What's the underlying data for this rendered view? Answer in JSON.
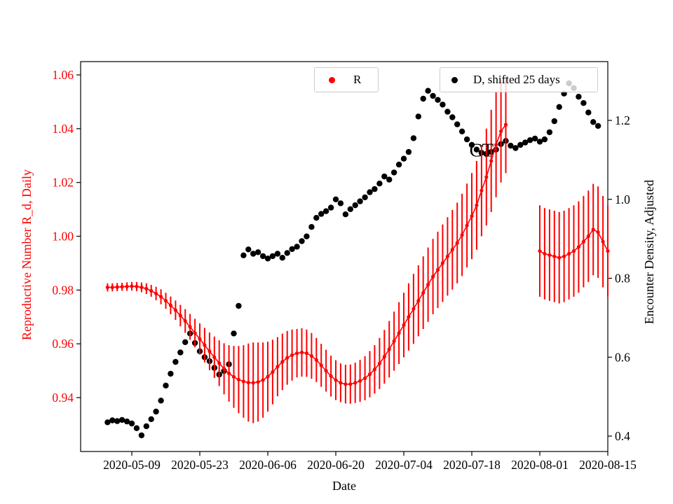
{
  "figure": {
    "legends": [
      {
        "label": "R",
        "marker_color": "#ff0000"
      },
      {
        "label": "D, shifted 25 days",
        "marker_color": "#000000"
      }
    ]
  },
  "chart_data": {
    "type": "scatter",
    "title": "",
    "xlabel": "Date",
    "grid": false,
    "annotation": {
      "text": "CT",
      "date": "2020-07-20",
      "value": 1.032
    },
    "x_axis": {
      "ticks": [
        "2020-05-09",
        "2020-05-23",
        "2020-06-06",
        "2020-06-20",
        "2020-07-04",
        "2020-07-18",
        "2020-08-01",
        "2020-08-15"
      ]
    },
    "left_axis": {
      "label": "Reproductive Number R_d, Daily",
      "color": "#ff0000",
      "ticks": [
        0.94,
        0.96,
        0.98,
        1.0,
        1.02,
        1.04,
        1.06
      ],
      "range": [
        0.928,
        1.063
      ]
    },
    "right_axis": {
      "label": "Encounter Density, Adjusted",
      "color": "#000000",
      "ticks": [
        0.4,
        0.6,
        0.8,
        1.0,
        1.2
      ],
      "range": [
        0.36,
        1.35
      ]
    },
    "series": [
      {
        "name": "R",
        "axis": "left",
        "color": "#ff0000",
        "marker": "dot",
        "errorbars": true,
        "points": [
          [
            "2020-05-04",
            0.981,
            0.0015
          ],
          [
            "2020-05-05",
            0.981,
            0.0015
          ],
          [
            "2020-05-06",
            0.9811,
            0.0015
          ],
          [
            "2020-05-07",
            0.9812,
            0.0015
          ],
          [
            "2020-05-08",
            0.9813,
            0.0016
          ],
          [
            "2020-05-09",
            0.9814,
            0.0016
          ],
          [
            "2020-05-10",
            0.9813,
            0.0017
          ],
          [
            "2020-05-11",
            0.981,
            0.0018
          ],
          [
            "2020-05-12",
            0.9805,
            0.002
          ],
          [
            "2020-05-13",
            0.9797,
            0.0022
          ],
          [
            "2020-05-14",
            0.9787,
            0.0025
          ],
          [
            "2020-05-15",
            0.9775,
            0.0028
          ],
          [
            "2020-05-16",
            0.976,
            0.003
          ],
          [
            "2020-05-17",
            0.9743,
            0.0033
          ],
          [
            "2020-05-18",
            0.9725,
            0.0036
          ],
          [
            "2020-05-19",
            0.9705,
            0.004
          ],
          [
            "2020-05-20",
            0.9685,
            0.0044
          ],
          [
            "2020-05-21",
            0.9663,
            0.0048
          ],
          [
            "2020-05-22",
            0.964,
            0.0053
          ],
          [
            "2020-05-23",
            0.9618,
            0.0058
          ],
          [
            "2020-05-24",
            0.9595,
            0.0064
          ],
          [
            "2020-05-25",
            0.9572,
            0.007
          ],
          [
            "2020-05-26",
            0.955,
            0.0077
          ],
          [
            "2020-05-27",
            0.9528,
            0.0085
          ],
          [
            "2020-05-28",
            0.9507,
            0.0095
          ],
          [
            "2020-05-29",
            0.949,
            0.0105
          ],
          [
            "2020-05-30",
            0.9477,
            0.0115
          ],
          [
            "2020-05-31",
            0.9467,
            0.0125
          ],
          [
            "2020-06-01",
            0.946,
            0.0135
          ],
          [
            "2020-06-02",
            0.9456,
            0.0145
          ],
          [
            "2020-06-03",
            0.9455,
            0.015
          ],
          [
            "2020-06-04",
            0.9458,
            0.0147
          ],
          [
            "2020-06-05",
            0.9465,
            0.014
          ],
          [
            "2020-06-06",
            0.9478,
            0.013
          ],
          [
            "2020-06-07",
            0.9495,
            0.012
          ],
          [
            "2020-06-08",
            0.9515,
            0.011
          ],
          [
            "2020-06-09",
            0.9533,
            0.0105
          ],
          [
            "2020-06-10",
            0.9548,
            0.01
          ],
          [
            "2020-06-11",
            0.9558,
            0.0095
          ],
          [
            "2020-06-12",
            0.9565,
            0.009
          ],
          [
            "2020-06-13",
            0.9568,
            0.009
          ],
          [
            "2020-06-14",
            0.9565,
            0.0088
          ],
          [
            "2020-06-15",
            0.9555,
            0.0085
          ],
          [
            "2020-06-16",
            0.954,
            0.0082
          ],
          [
            "2020-06-17",
            0.952,
            0.008
          ],
          [
            "2020-06-18",
            0.95,
            0.0078
          ],
          [
            "2020-06-19",
            0.948,
            0.0076
          ],
          [
            "2020-06-20",
            0.9465,
            0.0074
          ],
          [
            "2020-06-21",
            0.9455,
            0.0072
          ],
          [
            "2020-06-22",
            0.945,
            0.0072
          ],
          [
            "2020-06-23",
            0.945,
            0.0073
          ],
          [
            "2020-06-24",
            0.9455,
            0.0075
          ],
          [
            "2020-06-25",
            0.9462,
            0.0078
          ],
          [
            "2020-06-26",
            0.9472,
            0.0082
          ],
          [
            "2020-06-27",
            0.9487,
            0.0086
          ],
          [
            "2020-06-28",
            0.9505,
            0.009
          ],
          [
            "2020-06-29",
            0.9527,
            0.0095
          ],
          [
            "2020-06-30",
            0.9552,
            0.01
          ],
          [
            "2020-07-01",
            0.958,
            0.0105
          ],
          [
            "2020-07-02",
            0.961,
            0.011
          ],
          [
            "2020-07-03",
            0.964,
            0.0115
          ],
          [
            "2020-07-04",
            0.967,
            0.012
          ],
          [
            "2020-07-05",
            0.97,
            0.0125
          ],
          [
            "2020-07-06",
            0.973,
            0.013
          ],
          [
            "2020-07-07",
            0.976,
            0.0132
          ],
          [
            "2020-07-08",
            0.979,
            0.0135
          ],
          [
            "2020-07-09",
            0.982,
            0.0138
          ],
          [
            "2020-07-10",
            0.985,
            0.014
          ],
          [
            "2020-07-11",
            0.9875,
            0.0142
          ],
          [
            "2020-07-12",
            0.99,
            0.0144
          ],
          [
            "2020-07-13",
            0.9925,
            0.0146
          ],
          [
            "2020-07-14",
            0.995,
            0.0148
          ],
          [
            "2020-07-15",
            0.9975,
            0.015
          ],
          [
            "2020-07-16",
            1.0005,
            0.0153
          ],
          [
            "2020-07-17",
            1.004,
            0.0156
          ],
          [
            "2020-07-18",
            1.0075,
            0.016
          ],
          [
            "2020-07-19",
            1.0115,
            0.0165
          ],
          [
            "2020-07-20",
            1.017,
            0.017
          ],
          [
            "2020-07-21",
            1.022,
            0.018
          ],
          [
            "2020-07-22",
            1.028,
            0.019
          ],
          [
            "2020-07-23",
            1.034,
            0.0195
          ],
          [
            "2020-07-24",
            1.039,
            0.019
          ],
          [
            "2020-07-25",
            1.0415,
            0.018
          ],
          [
            "2020-08-01",
            0.9945,
            0.017
          ],
          [
            "2020-08-02",
            0.9935,
            0.017
          ],
          [
            "2020-08-03",
            0.993,
            0.017
          ],
          [
            "2020-08-04",
            0.9925,
            0.017
          ],
          [
            "2020-08-05",
            0.992,
            0.017
          ],
          [
            "2020-08-06",
            0.9925,
            0.017
          ],
          [
            "2020-08-07",
            0.9935,
            0.017
          ],
          [
            "2020-08-08",
            0.9945,
            0.017
          ],
          [
            "2020-08-09",
            0.996,
            0.017
          ],
          [
            "2020-08-10",
            0.998,
            0.017
          ],
          [
            "2020-08-11",
            1.0,
            0.017
          ],
          [
            "2020-08-12",
            1.0025,
            0.017
          ],
          [
            "2020-08-13",
            1.0015,
            0.017
          ],
          [
            "2020-08-14",
            0.998,
            0.017
          ],
          [
            "2020-08-15",
            0.9945,
            0.017
          ]
        ]
      },
      {
        "name": "D, shifted 25 days",
        "axis": "right",
        "color": "#000000",
        "marker": "dot",
        "errorbars": false,
        "points": [
          [
            "2020-05-04",
            0.435
          ],
          [
            "2020-05-05",
            0.44
          ],
          [
            "2020-05-06",
            0.438
          ],
          [
            "2020-05-07",
            0.441
          ],
          [
            "2020-05-08",
            0.437
          ],
          [
            "2020-05-09",
            0.432
          ],
          [
            "2020-05-10",
            0.42
          ],
          [
            "2020-05-11",
            0.402
          ],
          [
            "2020-05-12",
            0.425
          ],
          [
            "2020-05-13",
            0.443
          ],
          [
            "2020-05-14",
            0.462
          ],
          [
            "2020-05-15",
            0.49
          ],
          [
            "2020-05-16",
            0.528
          ],
          [
            "2020-05-17",
            0.558
          ],
          [
            "2020-05-18",
            0.588
          ],
          [
            "2020-05-19",
            0.612
          ],
          [
            "2020-05-20",
            0.638
          ],
          [
            "2020-05-21",
            0.66
          ],
          [
            "2020-05-22",
            0.636
          ],
          [
            "2020-05-23",
            0.615
          ],
          [
            "2020-05-24",
            0.6
          ],
          [
            "2020-05-25",
            0.59
          ],
          [
            "2020-05-26",
            0.573
          ],
          [
            "2020-05-27",
            0.556
          ],
          [
            "2020-05-28",
            0.565
          ],
          [
            "2020-05-29",
            0.582
          ],
          [
            "2020-05-30",
            0.66
          ],
          [
            "2020-05-31",
            0.73
          ],
          [
            "2020-06-01",
            0.858
          ],
          [
            "2020-06-02",
            0.873
          ],
          [
            "2020-06-03",
            0.862
          ],
          [
            "2020-06-04",
            0.866
          ],
          [
            "2020-06-05",
            0.856
          ],
          [
            "2020-06-06",
            0.85
          ],
          [
            "2020-06-07",
            0.856
          ],
          [
            "2020-06-08",
            0.862
          ],
          [
            "2020-06-09",
            0.852
          ],
          [
            "2020-06-10",
            0.864
          ],
          [
            "2020-06-11",
            0.874
          ],
          [
            "2020-06-12",
            0.88
          ],
          [
            "2020-06-13",
            0.894
          ],
          [
            "2020-06-14",
            0.906
          ],
          [
            "2020-06-15",
            0.93
          ],
          [
            "2020-06-16",
            0.953
          ],
          [
            "2020-06-17",
            0.963
          ],
          [
            "2020-06-18",
            0.97
          ],
          [
            "2020-06-19",
            0.979
          ],
          [
            "2020-06-20",
            1.0
          ],
          [
            "2020-06-21",
            0.99
          ],
          [
            "2020-06-22",
            0.962
          ],
          [
            "2020-06-23",
            0.975
          ],
          [
            "2020-06-24",
            0.985
          ],
          [
            "2020-06-25",
            0.995
          ],
          [
            "2020-06-26",
            1.005
          ],
          [
            "2020-06-27",
            1.018
          ],
          [
            "2020-06-28",
            1.026
          ],
          [
            "2020-06-29",
            1.04
          ],
          [
            "2020-06-30",
            1.058
          ],
          [
            "2020-07-01",
            1.05
          ],
          [
            "2020-07-02",
            1.068
          ],
          [
            "2020-07-03",
            1.088
          ],
          [
            "2020-07-04",
            1.103
          ],
          [
            "2020-07-05",
            1.12
          ],
          [
            "2020-07-06",
            1.155
          ],
          [
            "2020-07-07",
            1.21
          ],
          [
            "2020-07-08",
            1.255
          ],
          [
            "2020-07-09",
            1.275
          ],
          [
            "2020-07-10",
            1.262
          ],
          [
            "2020-07-11",
            1.252
          ],
          [
            "2020-07-12",
            1.24
          ],
          [
            "2020-07-13",
            1.222
          ],
          [
            "2020-07-14",
            1.208
          ],
          [
            "2020-07-15",
            1.19
          ],
          [
            "2020-07-16",
            1.172
          ],
          [
            "2020-07-17",
            1.152
          ],
          [
            "2020-07-18",
            1.138
          ],
          [
            "2020-07-19",
            1.126
          ],
          [
            "2020-07-20",
            1.118
          ],
          [
            "2020-07-21",
            1.115
          ],
          [
            "2020-07-22",
            1.12
          ],
          [
            "2020-07-23",
            1.126
          ],
          [
            "2020-07-24",
            1.14
          ],
          [
            "2020-07-25",
            1.148
          ],
          [
            "2020-07-26",
            1.136
          ],
          [
            "2020-07-27",
            1.13
          ],
          [
            "2020-07-28",
            1.138
          ],
          [
            "2020-07-29",
            1.144
          ],
          [
            "2020-07-30",
            1.15
          ],
          [
            "2020-07-31",
            1.154
          ],
          [
            "2020-08-01",
            1.146
          ],
          [
            "2020-08-02",
            1.152
          ],
          [
            "2020-08-03",
            1.17
          ],
          [
            "2020-08-04",
            1.198
          ],
          [
            "2020-08-05",
            1.234
          ],
          [
            "2020-08-06",
            1.268
          ],
          [
            "2020-08-07",
            1.294
          ],
          [
            "2020-08-08",
            1.282
          ],
          [
            "2020-08-09",
            1.26
          ],
          [
            "2020-08-10",
            1.244
          ],
          [
            "2020-08-11",
            1.22
          ],
          [
            "2020-08-12",
            1.196
          ],
          [
            "2020-08-13",
            1.186
          ]
        ]
      }
    ]
  }
}
